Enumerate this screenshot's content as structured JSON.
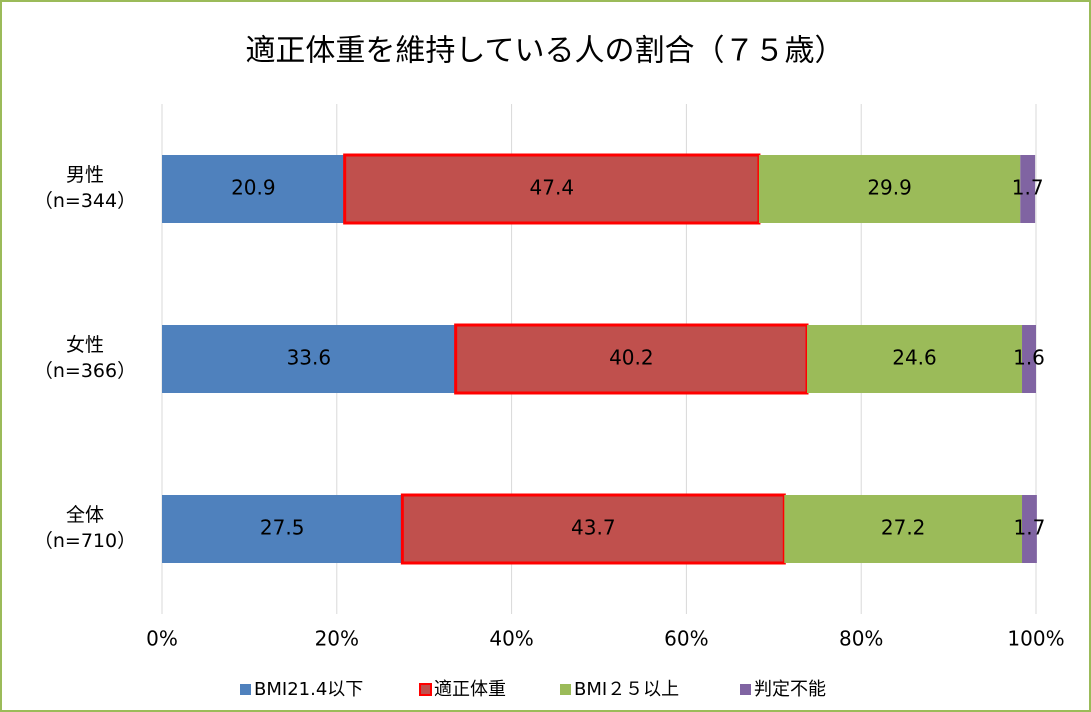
{
  "chart_data": {
    "type": "stacked_barh",
    "title": "適正体重を維持している人の割合（７５歳）",
    "categories": [
      "男性\n（n=344）",
      "女性\n（n=366）",
      "全体\n（n=710）"
    ],
    "series": [
      {
        "name": "BMI21.4以下",
        "color": "#4f81bd",
        "values": [
          20.9,
          33.6,
          27.5
        ]
      },
      {
        "name": "適正体重",
        "color": "#c0504d",
        "edgecolor": "#ff0000",
        "values": [
          47.4,
          40.2,
          43.7
        ]
      },
      {
        "name": "BMI２５以上",
        "color": "#9bbb59",
        "values": [
          29.9,
          24.6,
          27.2
        ]
      },
      {
        "name": "判定不能",
        "color": "#8064a2",
        "values": [
          1.7,
          1.6,
          1.7
        ]
      }
    ],
    "xlim": [
      0,
      100
    ],
    "xticks": [
      {
        "value": 0,
        "label": "0%"
      },
      {
        "value": 20,
        "label": "20%"
      },
      {
        "value": 40,
        "label": "40%"
      },
      {
        "value": 60,
        "label": "60%"
      },
      {
        "value": 80,
        "label": "80%"
      },
      {
        "value": 100,
        "label": "100%"
      }
    ],
    "grid": true,
    "legend": "bottom"
  }
}
